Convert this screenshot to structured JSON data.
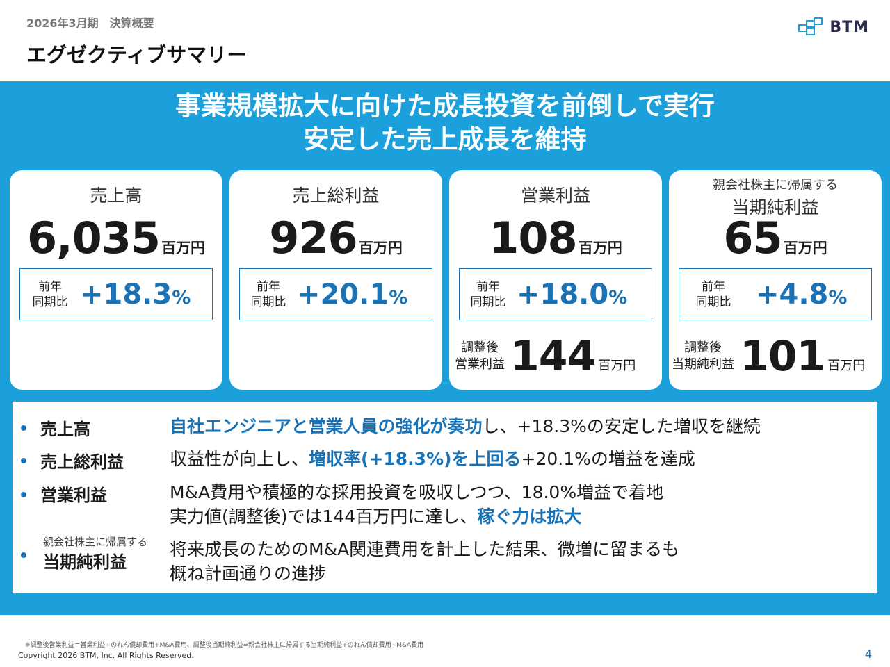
{
  "header": {
    "subtitle": "2026年3月期　決算概要",
    "title": "エグゼクティブサマリー",
    "logo_text": "BTM"
  },
  "headline": {
    "line1": "事業規模拡大に向けた成長投資を前倒しで実行",
    "line2": "安定した売上成長を維持"
  },
  "cards": [
    {
      "label": "売上高",
      "value": "6,035",
      "unit": "百万円",
      "yoy_label1": "前年",
      "yoy_label2": "同期比",
      "yoy_value": "+18.3",
      "yoy_unit": "%"
    },
    {
      "label": "売上総利益",
      "value": "926",
      "unit": "百万円",
      "yoy_label1": "前年",
      "yoy_label2": "同期比",
      "yoy_value": "+20.1",
      "yoy_unit": "%"
    },
    {
      "label": "営業利益",
      "value": "108",
      "unit": "百万円",
      "yoy_label1": "前年",
      "yoy_label2": "同期比",
      "yoy_value": "+18.0",
      "yoy_unit": "%",
      "adj_label1": "調整後",
      "adj_label2": "営業利益",
      "adj_value": "144",
      "adj_unit": "百万円"
    },
    {
      "label_small": "親会社株主に帰属する",
      "label": "当期純利益",
      "value": "65",
      "unit": "百万円",
      "yoy_label1": "前年",
      "yoy_label2": "同期比",
      "yoy_value": "+4.8",
      "yoy_unit": "%",
      "adj_label1": "調整後",
      "adj_label2": "当期純利益",
      "adj_value": "101",
      "adj_unit": "百万円"
    }
  ],
  "bullets": {
    "b1": {
      "head": "売上高",
      "hl": "自社エンジニアと営業人員の強化が奏功",
      "rest": "し、+18.3%の安定した増収を継続"
    },
    "b2": {
      "head": "売上総利益",
      "pre": "収益性が向上し、",
      "hl": "増収率(+18.3%)を上回る",
      "rest": "+20.1%の増益を達成"
    },
    "b3": {
      "head": "営業利益",
      "line1": "M&A費用や積極的な採用投資を吸収しつつ、18.0%増益で着地",
      "line2_pre": "実力値(調整後)では144百万円に達し、",
      "line2_hl": "稼ぐ力は拡大"
    },
    "b4": {
      "head_small": "親会社株主に帰属する",
      "head": "当期純利益",
      "line1": "将来成長のためのM&A関連費用を計上した結果、微増に留まるも",
      "line2": "概ね計画通りの進捗"
    }
  },
  "footer": {
    "footnote": "※調整後営業利益＝営業利益+のれん償却費用+M&A費用、調整後当期純利益=親会社株主に帰属する当期純利益+のれん償却費用+M&A費用",
    "copyright": "Copyright 2026 BTM, Inc. All Rights Reserved.",
    "page": "4"
  },
  "colors": {
    "band": "#1ba0dc",
    "accent": "#1b73b5"
  }
}
